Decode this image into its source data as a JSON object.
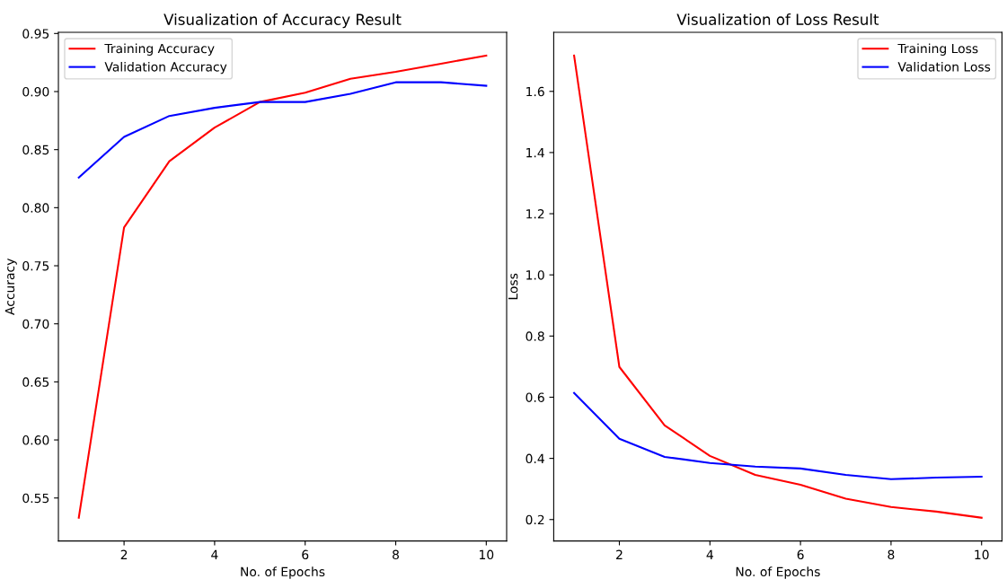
{
  "chart_data": [
    {
      "type": "line",
      "title": "Visualization of Accuracy Result",
      "xlabel": "No. of Epochs",
      "ylabel": "Accuracy",
      "x": [
        1,
        2,
        3,
        4,
        5,
        6,
        7,
        8,
        9,
        10
      ],
      "series": [
        {
          "name": "Training Accuracy",
          "color": "#ff0000",
          "values": [
            0.533,
            0.783,
            0.84,
            0.869,
            0.891,
            0.899,
            0.911,
            0.917,
            0.924,
            0.931
          ]
        },
        {
          "name": "Validation Accuracy",
          "color": "#0000ff",
          "values": [
            0.826,
            0.861,
            0.879,
            0.886,
            0.891,
            0.891,
            0.898,
            0.908,
            0.908,
            0.905
          ]
        }
      ],
      "xlim": [
        0.55,
        10.45
      ],
      "xticks": [
        2,
        4,
        6,
        8,
        10
      ],
      "ylim": [
        0.513,
        0.951
      ],
      "yticks": [
        {
          "value": 0.55,
          "label": "0.55"
        },
        {
          "value": 0.6,
          "label": "0.60"
        },
        {
          "value": 0.65,
          "label": "0.65"
        },
        {
          "value": 0.7,
          "label": "0.70"
        },
        {
          "value": 0.75,
          "label": "0.75"
        },
        {
          "value": 0.8,
          "label": "0.80"
        },
        {
          "value": 0.85,
          "label": "0.85"
        },
        {
          "value": 0.9,
          "label": "0.90"
        },
        {
          "value": 0.95,
          "label": "0.95"
        }
      ],
      "legend": "upper left",
      "grid": false
    },
    {
      "type": "line",
      "title": "Visualization of Loss Result",
      "xlabel": "No. of Epochs",
      "ylabel": "Loss",
      "x": [
        1,
        2,
        3,
        4,
        5,
        6,
        7,
        8,
        9,
        10
      ],
      "series": [
        {
          "name": "Training Loss",
          "color": "#ff0000",
          "values": [
            1.717,
            0.699,
            0.508,
            0.408,
            0.346,
            0.314,
            0.268,
            0.241,
            0.226,
            0.206
          ]
        },
        {
          "name": "Validation Loss",
          "color": "#0000ff",
          "values": [
            0.614,
            0.464,
            0.405,
            0.385,
            0.373,
            0.367,
            0.346,
            0.332,
            0.337,
            0.34
          ]
        }
      ],
      "xlim": [
        0.55,
        10.45
      ],
      "xticks": [
        2,
        4,
        6,
        8,
        10
      ],
      "ylim": [
        0.13,
        1.793
      ],
      "yticks": [
        0.2,
        0.4,
        0.6,
        0.8,
        {
          "value": 1,
          "label": "1.0"
        },
        1.2,
        1.4,
        1.6
      ],
      "legend": "upper right",
      "grid": false
    }
  ]
}
